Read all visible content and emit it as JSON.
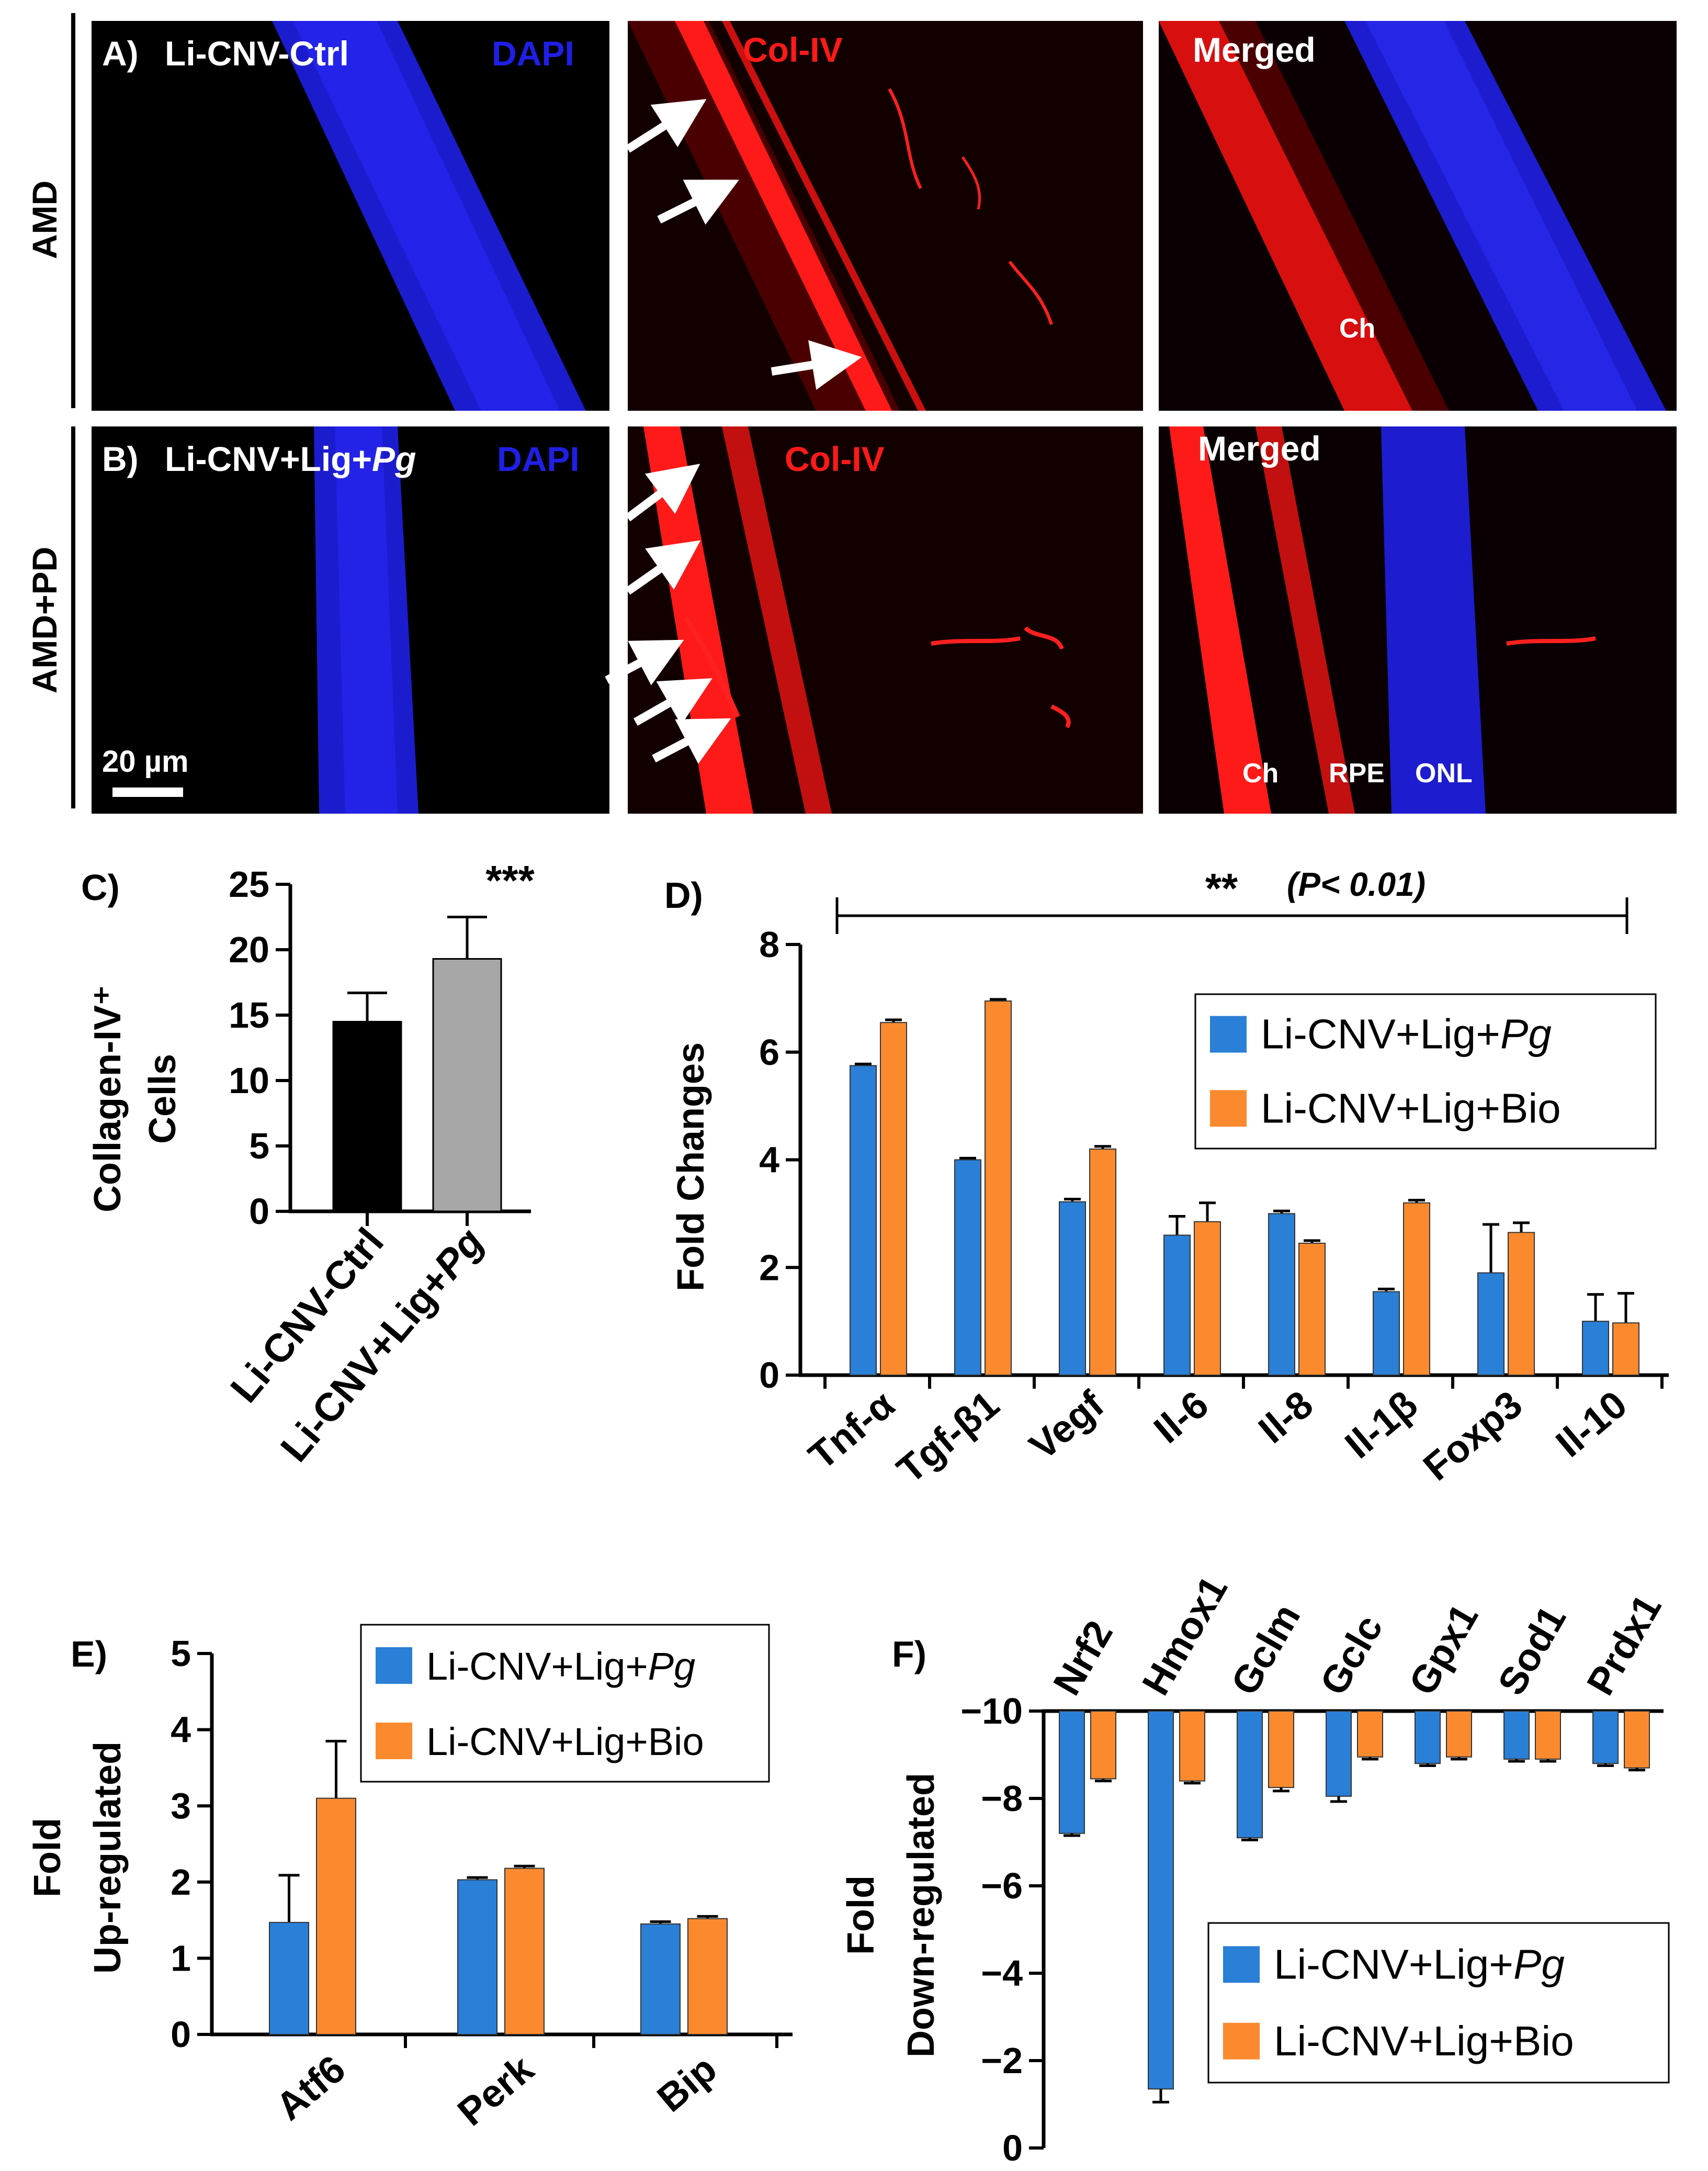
{
  "colors": {
    "blue": "#2a7fd6",
    "orange": "#fb8a2f",
    "black": "#000000",
    "grey": "#a7a7a7",
    "dapi": "#1f1fe6",
    "colIV": "#ff1a1a",
    "arrow": "#ffffff"
  },
  "micrographs": {
    "row_labels": [
      "AMD",
      "AMD+PD"
    ],
    "panel_a": {
      "letter": "A)",
      "title": "Li-CNV-Ctrl",
      "dapi_label": "DAPI",
      "col_label": "Col-IV",
      "merged_label": "Merged",
      "ch_label": "Ch"
    },
    "panel_b": {
      "letter": "B)",
      "title_prefix": "Li-CNV+Lig+",
      "title_italic": "Pg",
      "dapi_label": "DAPI",
      "col_label": "Col-IV",
      "merged_label": "Merged",
      "scale_label": "20 µm",
      "ch_label": "Ch",
      "rpe_label": "RPE",
      "onl_label": "ONL"
    }
  },
  "chart_data": [
    {
      "panel": "C)",
      "type": "bar",
      "ylabel_line1": "Collagen-IV⁺",
      "ylabel_line2": "Cells",
      "categories": [
        "Li-CNV-Ctrl",
        "Li-CNV+Lig+Pg"
      ],
      "values": [
        14.5,
        19.3
      ],
      "errors": [
        2.2,
        3.2
      ],
      "ylim": [
        0,
        25
      ],
      "yticks": [
        "0",
        "5",
        "10",
        "15",
        "20",
        "25"
      ],
      "significance": "***",
      "bar_colors": [
        "black",
        "grey"
      ]
    },
    {
      "panel": "D)",
      "type": "bar",
      "ylabel": "Fold Changes",
      "categories": [
        "Tnf-α",
        "Tgf-β1",
        "Vegf",
        "Il-6",
        "Il-8",
        "Il-1β",
        "Foxp3",
        "Il-10"
      ],
      "series": [
        {
          "name": "Li-CNV+Lig+Pg",
          "values": [
            5.75,
            4.0,
            3.22,
            2.6,
            3.0,
            1.55,
            1.9,
            1.0
          ],
          "errors": [
            0.03,
            0.03,
            0.05,
            0.35,
            0.05,
            0.05,
            0.9,
            0.5
          ]
        },
        {
          "name": "Li-CNV+Lig+Bio",
          "values": [
            6.55,
            6.95,
            4.2,
            2.85,
            2.45,
            3.2,
            2.65,
            0.97
          ],
          "errors": [
            0.05,
            0.03,
            0.05,
            0.35,
            0.05,
            0.05,
            0.18,
            0.55
          ]
        }
      ],
      "ylim": [
        0,
        8
      ],
      "yticks": [
        "0",
        "2",
        "4",
        "6",
        "8"
      ],
      "significance_stars": "**",
      "significance_p": "(P< 0.01)",
      "legend_position": "top-right"
    },
    {
      "panel": "E)",
      "type": "bar",
      "ylabel_line1": "Fold",
      "ylabel_line2": "Up-regulated",
      "categories": [
        "Atf6",
        "Perk",
        "Bip"
      ],
      "series": [
        {
          "name": "Li-CNV+Lig+Pg",
          "values": [
            1.47,
            2.03,
            1.45
          ],
          "errors": [
            0.62,
            0.03,
            0.03
          ]
        },
        {
          "name": "Li-CNV+Lig+Bio",
          "values": [
            3.1,
            2.18,
            1.52
          ],
          "errors": [
            0.75,
            0.03,
            0.03
          ]
        }
      ],
      "ylim": [
        0,
        5
      ],
      "yticks": [
        "0",
        "1",
        "2",
        "3",
        "4",
        "5"
      ],
      "legend_position": "top-right"
    },
    {
      "panel": "F)",
      "type": "bar",
      "ylabel_line1": "Fold",
      "ylabel_line2": "Down-regulated",
      "categories": [
        "Nrf2",
        "Hmox1",
        "Gclm",
        "Gclc",
        "Gpx1",
        "Sod1",
        "Prdx1"
      ],
      "series": [
        {
          "name": "Li-CNV+Lig+Pg",
          "values": [
            -2.8,
            -8.65,
            -2.9,
            -1.95,
            -1.2,
            -1.1,
            -1.2
          ],
          "errors": [
            0.05,
            0.3,
            0.05,
            0.12,
            0.05,
            0.05,
            0.05
          ]
        },
        {
          "name": "Li-CNV+Lig+Bio",
          "values": [
            -1.55,
            -1.6,
            -1.75,
            -1.05,
            -1.05,
            -1.1,
            -1.3
          ],
          "errors": [
            0.05,
            0.05,
            0.08,
            0.05,
            0.05,
            0.05,
            0.05
          ]
        }
      ],
      "ylim": [
        -10,
        0
      ],
      "yticks": [
        "0",
        "−2",
        "−4",
        "−6",
        "−8",
        "−10"
      ],
      "legend_position": "bottom-right"
    }
  ]
}
